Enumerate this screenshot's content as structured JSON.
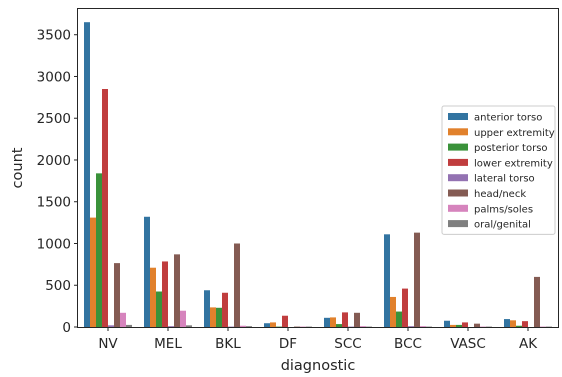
{
  "chart_data": {
    "type": "bar",
    "title": "",
    "xlabel": "diagnostic",
    "ylabel": "count",
    "ylim": [
      0,
      3800
    ],
    "yticks": [
      0,
      500,
      1000,
      1500,
      2000,
      2500,
      3000,
      3500
    ],
    "grid": false,
    "legend_position": "right",
    "categories": [
      "NV",
      "MEL",
      "BKL",
      "DF",
      "SCC",
      "BCC",
      "VASC",
      "AK"
    ],
    "series": [
      {
        "name": "anterior torso",
        "color": "#3274a1",
        "values": [
          3650,
          1320,
          440,
          45,
          110,
          1110,
          75,
          95
        ]
      },
      {
        "name": "upper extremity",
        "color": "#e1812c",
        "values": [
          1310,
          710,
          235,
          55,
          115,
          360,
          25,
          80
        ]
      },
      {
        "name": "posterior torso",
        "color": "#3a923a",
        "values": [
          1840,
          425,
          230,
          5,
          35,
          185,
          25,
          15
        ]
      },
      {
        "name": "lower extremity",
        "color": "#c03d3e",
        "values": [
          2850,
          785,
          410,
          135,
          175,
          460,
          55,
          70
        ]
      },
      {
        "name": "lateral torso",
        "color": "#9372b2",
        "values": [
          20,
          10,
          5,
          0,
          5,
          10,
          0,
          0
        ]
      },
      {
        "name": "head/neck",
        "color": "#845b53",
        "values": [
          765,
          870,
          1000,
          5,
          170,
          1130,
          40,
          600
        ]
      },
      {
        "name": "palms/soles",
        "color": "#d684bd",
        "values": [
          170,
          195,
          15,
          5,
          10,
          10,
          5,
          5
        ]
      },
      {
        "name": "oral/genital",
        "color": "#7f7f7f",
        "values": [
          25,
          20,
          10,
          5,
          5,
          5,
          5,
          5
        ]
      }
    ]
  }
}
